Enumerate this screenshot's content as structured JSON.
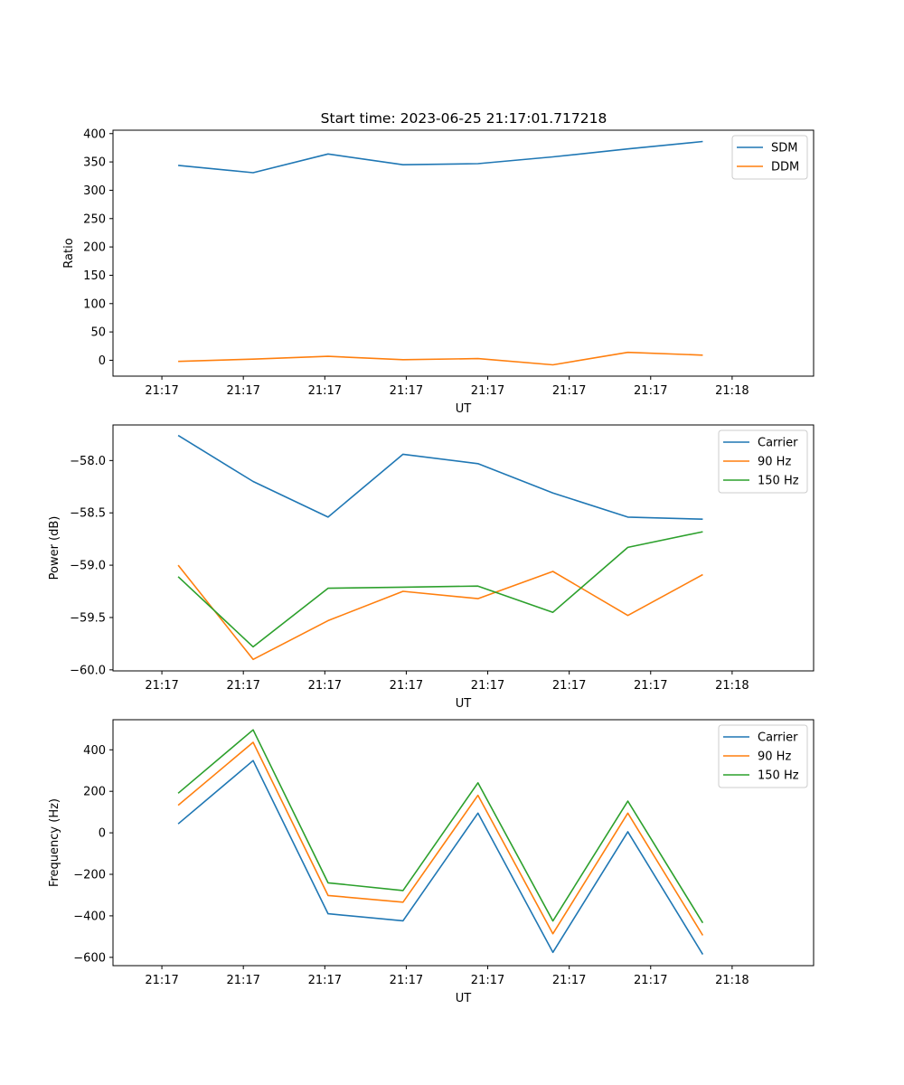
{
  "figure": {
    "title": "Start time: 2023-06-25 21:17:01.717218"
  },
  "chart_data": [
    {
      "type": "line",
      "title": "Start time: 2023-06-25 21:17:01.717218",
      "xlabel": "UT",
      "ylabel": "Ratio",
      "x_tick_labels": [
        "21:17",
        "21:17",
        "21:17",
        "21:17",
        "21:17",
        "21:17",
        "21:17",
        "21:18"
      ],
      "xlim": [
        -1.5,
        20.0
      ],
      "ylim": [
        -28,
        406
      ],
      "y_ticks": [
        0,
        50,
        100,
        150,
        200,
        250,
        300,
        350,
        400
      ],
      "x": [
        0.5,
        2.8,
        5.1,
        7.4,
        9.7,
        12.0,
        14.3,
        16.6
      ],
      "legend": "top-right",
      "grid": false,
      "series": [
        {
          "name": "SDM",
          "color": "#1f77b4",
          "values": [
            344,
            331,
            364,
            345,
            347,
            359,
            373,
            386
          ]
        },
        {
          "name": "DDM",
          "color": "#ff7f0e",
          "values": [
            -2,
            2,
            7,
            1,
            3,
            -8,
            14,
            9
          ]
        }
      ]
    },
    {
      "type": "line",
      "title": "",
      "xlabel": "UT",
      "ylabel": "Power (dB)",
      "x_tick_labels": [
        "21:17",
        "21:17",
        "21:17",
        "21:17",
        "21:17",
        "21:17",
        "21:17",
        "21:18"
      ],
      "xlim": [
        -1.5,
        20.0
      ],
      "ylim": [
        -60.01,
        -57.66
      ],
      "y_ticks": [
        -60.0,
        -59.5,
        -59.0,
        -58.5,
        -58.0
      ],
      "y_tick_labels": [
        "−60.0",
        "−59.5",
        "−59.0",
        "−58.5",
        "−58.0"
      ],
      "x": [
        0.5,
        2.8,
        5.1,
        7.4,
        9.7,
        12.0,
        14.3,
        16.6
      ],
      "legend": "top-right",
      "grid": false,
      "series": [
        {
          "name": "Carrier",
          "color": "#1f77b4",
          "values": [
            -57.76,
            -58.2,
            -58.54,
            -57.94,
            -58.03,
            -58.31,
            -58.54,
            -58.56
          ]
        },
        {
          "name": "90 Hz",
          "color": "#ff7f0e",
          "values": [
            -59.0,
            -59.9,
            -59.53,
            -59.25,
            -59.32,
            -59.06,
            -59.48,
            -59.09
          ]
        },
        {
          "name": "150 Hz",
          "color": "#2ca02c",
          "values": [
            -59.11,
            -59.78,
            -59.22,
            -59.21,
            -59.2,
            -59.45,
            -58.83,
            -58.68
          ]
        }
      ]
    },
    {
      "type": "line",
      "title": "",
      "xlabel": "UT",
      "ylabel": "Frequency (Hz)",
      "x_tick_labels": [
        "21:17",
        "21:17",
        "21:17",
        "21:17",
        "21:17",
        "21:17",
        "21:17",
        "21:18"
      ],
      "xlim": [
        -1.5,
        20.0
      ],
      "ylim": [
        -640,
        545
      ],
      "y_ticks": [
        -600,
        -400,
        -200,
        0,
        200,
        400
      ],
      "y_tick_labels": [
        "−600",
        "−400",
        "−200",
        "0",
        "200",
        "400"
      ],
      "x": [
        0.5,
        2.8,
        5.1,
        7.4,
        9.7,
        12.0,
        14.3,
        16.6
      ],
      "legend": "top-right",
      "grid": false,
      "series": [
        {
          "name": "Carrier",
          "color": "#1f77b4",
          "values": [
            43,
            348,
            -390,
            -424,
            95,
            -576,
            5,
            -586
          ]
        },
        {
          "name": "90 Hz",
          "color": "#ff7f0e",
          "values": [
            133,
            436,
            -302,
            -334,
            181,
            -486,
            95,
            -494
          ]
        },
        {
          "name": "150 Hz",
          "color": "#2ca02c",
          "values": [
            191,
            496,
            -241,
            -278,
            241,
            -425,
            153,
            -434
          ]
        }
      ]
    }
  ]
}
